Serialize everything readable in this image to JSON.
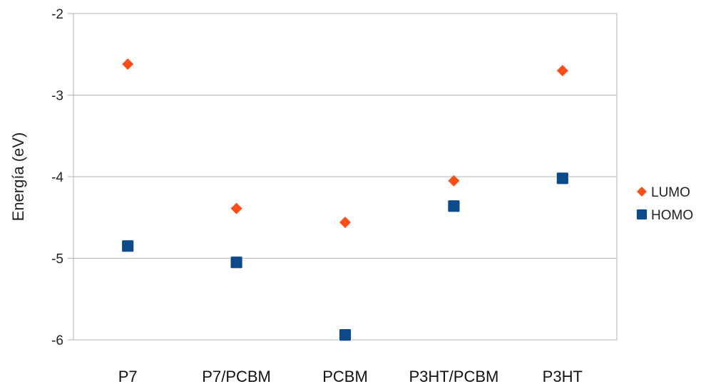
{
  "chart_data": {
    "type": "scatter",
    "title": "",
    "xlabel": "",
    "ylabel": "Energía (eV)",
    "categories": [
      "P7",
      "P7/PCBM",
      "PCBM",
      "P3HT/PCBM",
      "P3HT"
    ],
    "ylim": [
      -6,
      -2
    ],
    "yticks": [
      -2,
      -3,
      -4,
      -5,
      -6
    ],
    "grid": true,
    "legend_position": "right",
    "series": [
      {
        "name": "LUMO",
        "marker": "diamond",
        "color": "#ff4d1a",
        "values": [
          -2.62,
          -4.39,
          -4.56,
          -4.05,
          -2.7
        ]
      },
      {
        "name": "HOMO",
        "marker": "square",
        "color": "#0d4a8a",
        "values": [
          -4.85,
          -5.05,
          -5.94,
          -4.36,
          -4.02
        ]
      }
    ]
  }
}
